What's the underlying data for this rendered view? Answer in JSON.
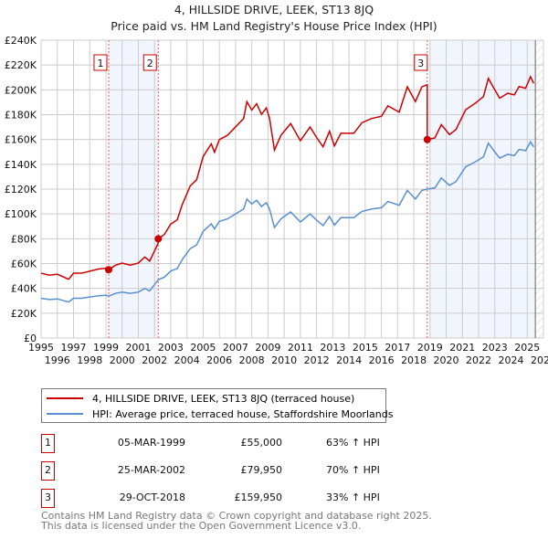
{
  "chart_data": {
    "type": "line",
    "title": "4, HILLSIDE DRIVE, LEEK, ST13 8JQ",
    "subtitle": "Price paid vs. HM Land Registry's House Price Index (HPI)",
    "xlim": [
      1995,
      2026
    ],
    "ylim": [
      0,
      240000
    ],
    "x_ticks": [
      "1995",
      "1996",
      "1997",
      "1998",
      "1999",
      "2000",
      "2001",
      "2002",
      "2003",
      "2004",
      "2005",
      "2006",
      "2007",
      "2008",
      "2009",
      "2010",
      "2011",
      "2012",
      "2013",
      "2014",
      "2015",
      "2016",
      "2017",
      "2018",
      "2019",
      "2020",
      "2021",
      "2022",
      "2023",
      "2024",
      "2025",
      "2026"
    ],
    "y_ticks": [
      {
        "value": 0,
        "label": "£0"
      },
      {
        "value": 20000,
        "label": "£20K"
      },
      {
        "value": 40000,
        "label": "£40K"
      },
      {
        "value": 60000,
        "label": "£60K"
      },
      {
        "value": 80000,
        "label": "£80K"
      },
      {
        "value": 100000,
        "label": "£100K"
      },
      {
        "value": 120000,
        "label": "£120K"
      },
      {
        "value": 140000,
        "label": "£140K"
      },
      {
        "value": 160000,
        "label": "£160K"
      },
      {
        "value": 180000,
        "label": "£180K"
      },
      {
        "value": 200000,
        "label": "£200K"
      },
      {
        "value": 220000,
        "label": "£220K"
      },
      {
        "value": 240000,
        "label": "£240K"
      }
    ],
    "grid": true,
    "shaded_ranges": [
      [
        1999.17,
        2002.23
      ],
      [
        2019.0,
        2025.5
      ]
    ],
    "future_hatch_from": 2025.5,
    "series": [
      {
        "name": "4, HILLSIDE DRIVE, LEEK, ST13 8JQ (terraced house)",
        "color": "#cc0000",
        "kind": "indexed_price_paid"
      },
      {
        "name": "HPI: Average price, terraced house, Staffordshire Moorlands",
        "color": "#5b8fd0",
        "x": [
          1995.0,
          1995.5,
          1996.0,
          1996.7,
          1997.0,
          1997.5,
          1998.0,
          1998.5,
          1999.0,
          1999.17,
          1999.6,
          2000.0,
          2000.5,
          2001.0,
          2001.4,
          2001.7,
          2002.0,
          2002.23,
          2002.6,
          2003.0,
          2003.4,
          2003.7,
          2004.2,
          2004.6,
          2005.0,
          2005.5,
          2005.7,
          2006.0,
          2006.5,
          2007.0,
          2007.5,
          2007.7,
          2008.0,
          2008.3,
          2008.6,
          2008.9,
          2009.1,
          2009.4,
          2009.8,
          2010.4,
          2011.0,
          2011.6,
          2012.0,
          2012.4,
          2012.8,
          2013.1,
          2013.5,
          2014.3,
          2014.8,
          2015.4,
          2016.0,
          2016.4,
          2017.1,
          2017.6,
          2018.1,
          2018.5,
          2018.83,
          2019.3,
          2019.7,
          2020.2,
          2020.6,
          2021.2,
          2021.8,
          2022.3,
          2022.6,
          2023.0,
          2023.3,
          2023.8,
          2024.2,
          2024.5,
          2024.9,
          2025.2,
          2025.4
        ],
        "y": [
          32000,
          31000,
          31500,
          29000,
          32000,
          32000,
          33000,
          34000,
          34500,
          33700,
          36000,
          37000,
          36000,
          37000,
          40000,
          38000,
          43000,
          47000,
          49000,
          54000,
          56000,
          63000,
          72000,
          75000,
          86000,
          92000,
          88000,
          94000,
          96000,
          100000,
          104000,
          112000,
          108000,
          111000,
          106000,
          109000,
          104000,
          89000,
          96000,
          101600,
          93500,
          100000,
          95000,
          90600,
          98000,
          91000,
          97000,
          97000,
          102000,
          104000,
          105000,
          110000,
          107000,
          119000,
          112000,
          119000,
          120000,
          121000,
          129000,
          123000,
          126000,
          138000,
          142000,
          146000,
          157000,
          150000,
          145000,
          148000,
          147000,
          152000,
          151000,
          158000,
          154000
        ]
      }
    ],
    "sales": [
      {
        "id": "1",
        "year": 1999.17,
        "price": 55000,
        "date": "05-MAR-1999",
        "price_label": "£55,000",
        "hpi_label": "63% ↑ HPI"
      },
      {
        "id": "2",
        "year": 2002.23,
        "price": 79950,
        "date": "25-MAR-2002",
        "price_label": "£79,950",
        "hpi_label": "70% ↑ HPI"
      },
      {
        "id": "3",
        "year": 2018.83,
        "price": 159950,
        "date": "29-OCT-2018",
        "price_label": "£159,950",
        "hpi_label": "33% ↑ HPI"
      }
    ]
  },
  "legend": {
    "red_label": "4, HILLSIDE DRIVE, LEEK, ST13 8JQ (terraced house)",
    "blue_label": "HPI: Average price, terraced house, Staffordshire Moorlands"
  },
  "footer": {
    "line1": "Contains HM Land Registry data © Crown copyright and database right 2025.",
    "line2": "This data is licensed under the Open Government Licence v3.0."
  }
}
